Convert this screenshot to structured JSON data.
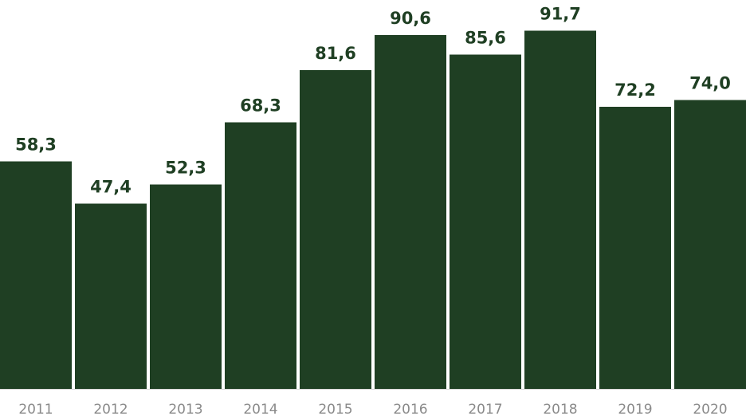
{
  "chart_data": {
    "type": "bar",
    "categories": [
      "2011",
      "2012",
      "2013",
      "2014",
      "2015",
      "2016",
      "2017",
      "2018",
      "2019",
      "2020"
    ],
    "values": [
      58.3,
      47.4,
      52.3,
      68.3,
      81.6,
      90.6,
      85.6,
      91.7,
      72.2,
      74.0
    ],
    "value_labels": [
      "58,3",
      "47,4",
      "52,3",
      "68,3",
      "81,6",
      "90,6",
      "85,6",
      "91,7",
      "72,2",
      "74,0"
    ],
    "title": "",
    "xlabel": "",
    "ylabel": "",
    "ylim": [
      0,
      100
    ],
    "grid": false,
    "colors": {
      "bar": "#1f3f23",
      "data_label": "#1f3f23",
      "tick_label": "#8a8a8a",
      "baseline": "#d9d9d9"
    }
  }
}
